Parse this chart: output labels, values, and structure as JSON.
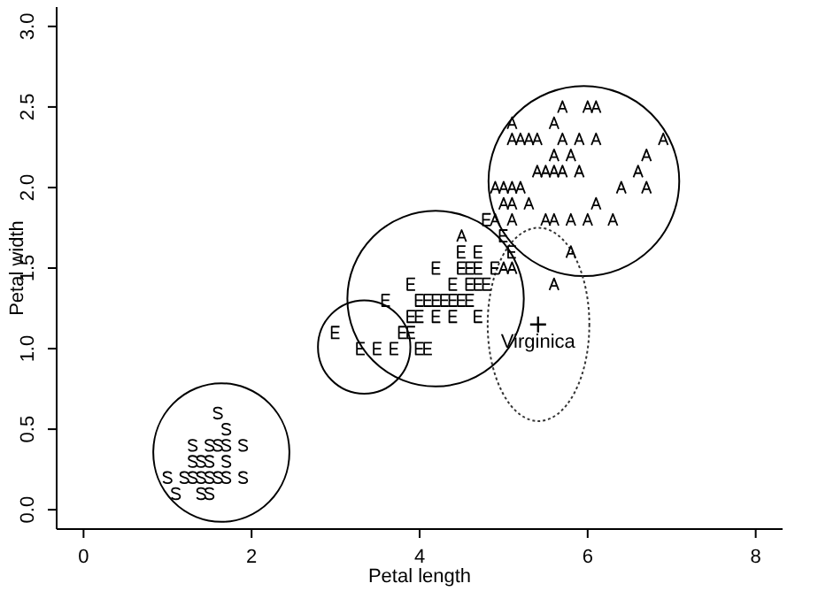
{
  "chart_data": {
    "type": "scatter",
    "xlabel": "Petal length",
    "ylabel": "Petal width",
    "xlim": [
      -0.32,
      8.32
    ],
    "ylim": [
      -0.12,
      3.12
    ],
    "xticks": [
      0,
      2,
      4,
      6,
      8
    ],
    "yticks": [
      {
        "value": 0,
        "label": "0.0"
      },
      {
        "value": 0.5,
        "label": "0.5"
      },
      {
        "value": 1,
        "label": "1.0"
      },
      {
        "value": 1.5,
        "label": "1.5"
      },
      {
        "value": 2,
        "label": "2.0"
      },
      {
        "value": 2.5,
        "label": "2.5"
      },
      {
        "value": 3,
        "label": "3.0"
      }
    ],
    "grid": false,
    "legend": false,
    "series": [
      {
        "color": "#000000",
        "x": [
          1.6,
          1.7,
          1.3,
          1.5,
          1.6,
          1.7,
          1.9,
          1.3,
          1.4,
          1.5,
          1.7,
          1.0,
          1.2,
          1.3,
          1.4,
          1.5,
          1.6,
          1.7,
          1.9,
          1.1,
          1.4,
          1.5
        ],
        "values": [
          0.6,
          0.5,
          0.4,
          0.4,
          0.4,
          0.4,
          0.4,
          0.3,
          0.3,
          0.3,
          0.3,
          0.2,
          0.2,
          0.2,
          0.2,
          0.2,
          0.2,
          0.2,
          0.2,
          0.1,
          0.1,
          0.1
        ]
      },
      {
        "color": "#000000",
        "x": [
          3.3,
          3.5,
          3.7,
          4.0,
          4.1,
          3.0,
          3.8,
          3.9,
          3.9,
          4.0,
          4.2,
          4.4,
          4.7,
          3.6,
          4.0,
          4.1,
          4.2,
          4.3,
          4.4,
          4.5,
          4.6,
          3.9,
          4.4,
          4.6,
          4.7,
          4.8,
          4.2,
          4.5,
          4.6,
          4.7,
          4.9,
          4.5,
          4.7,
          5.1,
          5.0,
          4.8
        ],
        "values": [
          1.0,
          1.0,
          1.0,
          1.0,
          1.0,
          1.1,
          1.1,
          1.1,
          1.2,
          1.2,
          1.2,
          1.2,
          1.2,
          1.3,
          1.3,
          1.3,
          1.3,
          1.3,
          1.3,
          1.3,
          1.3,
          1.4,
          1.4,
          1.4,
          1.4,
          1.4,
          1.5,
          1.5,
          1.5,
          1.5,
          1.5,
          1.6,
          1.6,
          1.6,
          1.7,
          1.8
        ]
      },
      {
        "color": "#000000",
        "x": [
          5.6,
          5.0,
          5.1,
          5.8,
          4.5,
          4.9,
          5.1,
          5.5,
          5.6,
          5.8,
          6.0,
          6.3,
          5.0,
          5.1,
          5.3,
          6.1,
          4.9,
          5.0,
          5.1,
          5.2,
          6.4,
          6.7,
          5.4,
          5.5,
          5.6,
          5.7,
          5.9,
          6.6,
          5.6,
          5.8,
          6.7,
          5.1,
          5.2,
          5.3,
          5.4,
          5.7,
          5.9,
          6.1,
          6.9,
          5.1,
          5.6,
          5.7,
          6.0,
          6.1
        ],
        "values": [
          1.4,
          1.5,
          1.5,
          1.6,
          1.7,
          1.8,
          1.8,
          1.8,
          1.8,
          1.8,
          1.8,
          1.8,
          1.9,
          1.9,
          1.9,
          1.9,
          2.0,
          2.0,
          2.0,
          2.0,
          2.0,
          2.0,
          2.1,
          2.1,
          2.1,
          2.1,
          2.1,
          2.1,
          2.2,
          2.2,
          2.2,
          2.3,
          2.3,
          2.3,
          2.3,
          2.3,
          2.3,
          2.3,
          2.3,
          2.4,
          2.4,
          2.5,
          2.5,
          2.5
        ]
      },
      {
        "type": "scatter",
        "color": "#000000",
        "marker": "cross",
        "x": [
          5.41
        ],
        "values": [
          1.15
        ]
      }
    ],
    "annotations": [
      {
        "text": "Virginica",
        "x": 5.41,
        "y": 1.15
      }
    ]
  }
}
